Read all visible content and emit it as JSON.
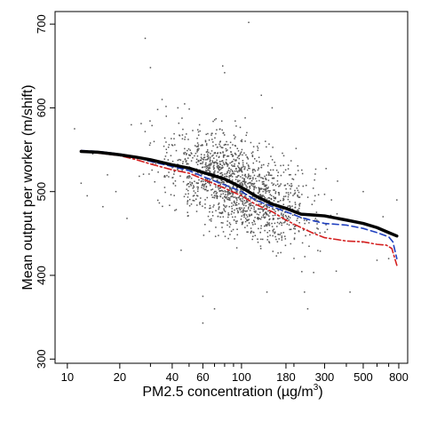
{
  "chart_data": {
    "type": "scatter",
    "title": "",
    "xlabel": "PM2.5 concentration (µg/m³)",
    "xlabel_parts": {
      "base": "PM2.5 concentration (µg/m",
      "sup": "3",
      "end": ")"
    },
    "ylabel": "Mean output per worker (m/shift)",
    "x_scale": "log",
    "xlim": [
      8.5,
      900
    ],
    "ylim": [
      295,
      715
    ],
    "x_ticks": [
      10,
      20,
      40,
      60,
      100,
      180,
      300,
      500,
      800
    ],
    "x_tick_labels": [
      "10",
      "20",
      "40",
      "60",
      "100",
      "180",
      "300",
      "500",
      "800"
    ],
    "x_minor_ticks": [
      30,
      50,
      70,
      80,
      90,
      200,
      400,
      600,
      700
    ],
    "y_ticks": [
      300,
      400,
      500,
      600,
      700
    ],
    "y_tick_labels": [
      "300",
      "400",
      "500",
      "600",
      "700"
    ],
    "grid": false,
    "scatter_point_count": 1500,
    "scatter_color": "#555555",
    "outliers": [
      {
        "x": 28,
        "y": 683
      },
      {
        "x": 110,
        "y": 702
      },
      {
        "x": 78,
        "y": 650
      },
      {
        "x": 80,
        "y": 642
      },
      {
        "x": 30,
        "y": 648
      },
      {
        "x": 60,
        "y": 343
      },
      {
        "x": 14,
        "y": 545
      },
      {
        "x": 11,
        "y": 575
      },
      {
        "x": 12,
        "y": 510
      },
      {
        "x": 13,
        "y": 495
      },
      {
        "x": 16,
        "y": 482
      },
      {
        "x": 19,
        "y": 500
      },
      {
        "x": 22,
        "y": 468
      },
      {
        "x": 140,
        "y": 380
      },
      {
        "x": 240,
        "y": 360
      },
      {
        "x": 230,
        "y": 380
      },
      {
        "x": 600,
        "y": 418
      },
      {
        "x": 780,
        "y": 490
      },
      {
        "x": 60,
        "y": 375
      },
      {
        "x": 70,
        "y": 360
      },
      {
        "x": 45,
        "y": 430
      },
      {
        "x": 35,
        "y": 610
      },
      {
        "x": 33,
        "y": 598
      },
      {
        "x": 37,
        "y": 590
      },
      {
        "x": 150,
        "y": 600
      },
      {
        "x": 130,
        "y": 615
      },
      {
        "x": 105,
        "y": 588
      },
      {
        "x": 500,
        "y": 500
      },
      {
        "x": 650,
        "y": 470
      },
      {
        "x": 700,
        "y": 420
      },
      {
        "x": 420,
        "y": 380
      },
      {
        "x": 350,
        "y": 405
      },
      {
        "x": 17,
        "y": 520
      }
    ],
    "series": [
      {
        "style": "solid",
        "color": "#000000",
        "x": [
          12,
          15,
          20,
          25,
          30,
          40,
          50,
          60,
          80,
          100,
          120,
          150,
          180,
          220,
          260,
          300,
          400,
          500,
          600,
          700,
          780
        ],
        "y": [
          548,
          547,
          544,
          541,
          538,
          532,
          528,
          523,
          515,
          505,
          495,
          485,
          480,
          473,
          472,
          471,
          466,
          462,
          457,
          451,
          447
        ]
      },
      {
        "style": "dashed",
        "color": "#1f3fbf",
        "x": [
          12,
          15,
          20,
          25,
          30,
          40,
          50,
          60,
          80,
          100,
          120,
          150,
          180,
          220,
          260,
          300,
          400,
          500,
          600,
          700,
          740,
          780
        ],
        "y": [
          549,
          548,
          545,
          541,
          536,
          530,
          525,
          518,
          508,
          500,
          490,
          482,
          476,
          469,
          465,
          462,
          460,
          456,
          451,
          446,
          440,
          420
        ]
      },
      {
        "style": "dashdot",
        "color": "#d42020",
        "x": [
          12,
          15,
          20,
          25,
          30,
          40,
          50,
          60,
          80,
          100,
          120,
          150,
          180,
          220,
          260,
          300,
          400,
          500,
          600,
          680,
          730,
          780
        ],
        "y": [
          549,
          546,
          543,
          538,
          533,
          526,
          522,
          515,
          504,
          495,
          485,
          476,
          466,
          457,
          450,
          445,
          441,
          440,
          437,
          436,
          432,
          412
        ]
      }
    ]
  }
}
